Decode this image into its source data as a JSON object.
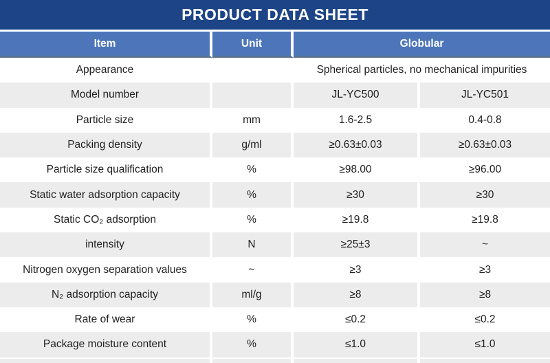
{
  "title": "PRODUCT DATA SHEET",
  "colors": {
    "title_bar_bg": "#1d4487",
    "header_bg": "#4d76ba",
    "header_text": "#ffffff",
    "row_alt_bg": "#ececec",
    "body_text": "#1e1e1e"
  },
  "table": {
    "headers": {
      "item": "Item",
      "unit": "Unit",
      "globular": "Globular"
    },
    "rows": [
      {
        "item": "Appearance",
        "unit": "",
        "values": [
          "Spherical particles, no mechanical impurities"
        ]
      },
      {
        "item": "Model number",
        "unit": "",
        "values": [
          "JL-YC500",
          "JL-YC501"
        ]
      },
      {
        "item": "Particle size",
        "unit": "mm",
        "values": [
          "1.6-2.5",
          "0.4-0.8"
        ]
      },
      {
        "item": "Packing density",
        "unit": "g/ml",
        "values": [
          "≥0.63±0.03",
          "≥0.63±0.03"
        ]
      },
      {
        "item": "Particle size qualification",
        "unit": "%",
        "values": [
          "≥98.00",
          "≥96.00"
        ]
      },
      {
        "item": "Static water adsorption capacity",
        "unit": "%",
        "values": [
          "≥30",
          "≥30"
        ]
      },
      {
        "item": "Static CO₂ adsorption",
        "unit": "%",
        "values": [
          "≥19.8",
          "≥19.8"
        ]
      },
      {
        "item": "intensity",
        "unit": "N",
        "values": [
          "≥25±3",
          "~"
        ]
      },
      {
        "item": "Nitrogen oxygen separation values",
        "unit": "~",
        "values": [
          "≥3",
          "≥3"
        ]
      },
      {
        "item": "N₂ adsorption capacity",
        "unit": "ml/g",
        "values": [
          "≥8",
          "≥8"
        ]
      },
      {
        "item": "Rate of wear",
        "unit": "%",
        "values": [
          "≤0.2",
          "≤0.2"
        ]
      },
      {
        "item": "Package moisture content",
        "unit": "%",
        "values": [
          "≤1.0",
          "≤1.0"
        ]
      }
    ]
  }
}
